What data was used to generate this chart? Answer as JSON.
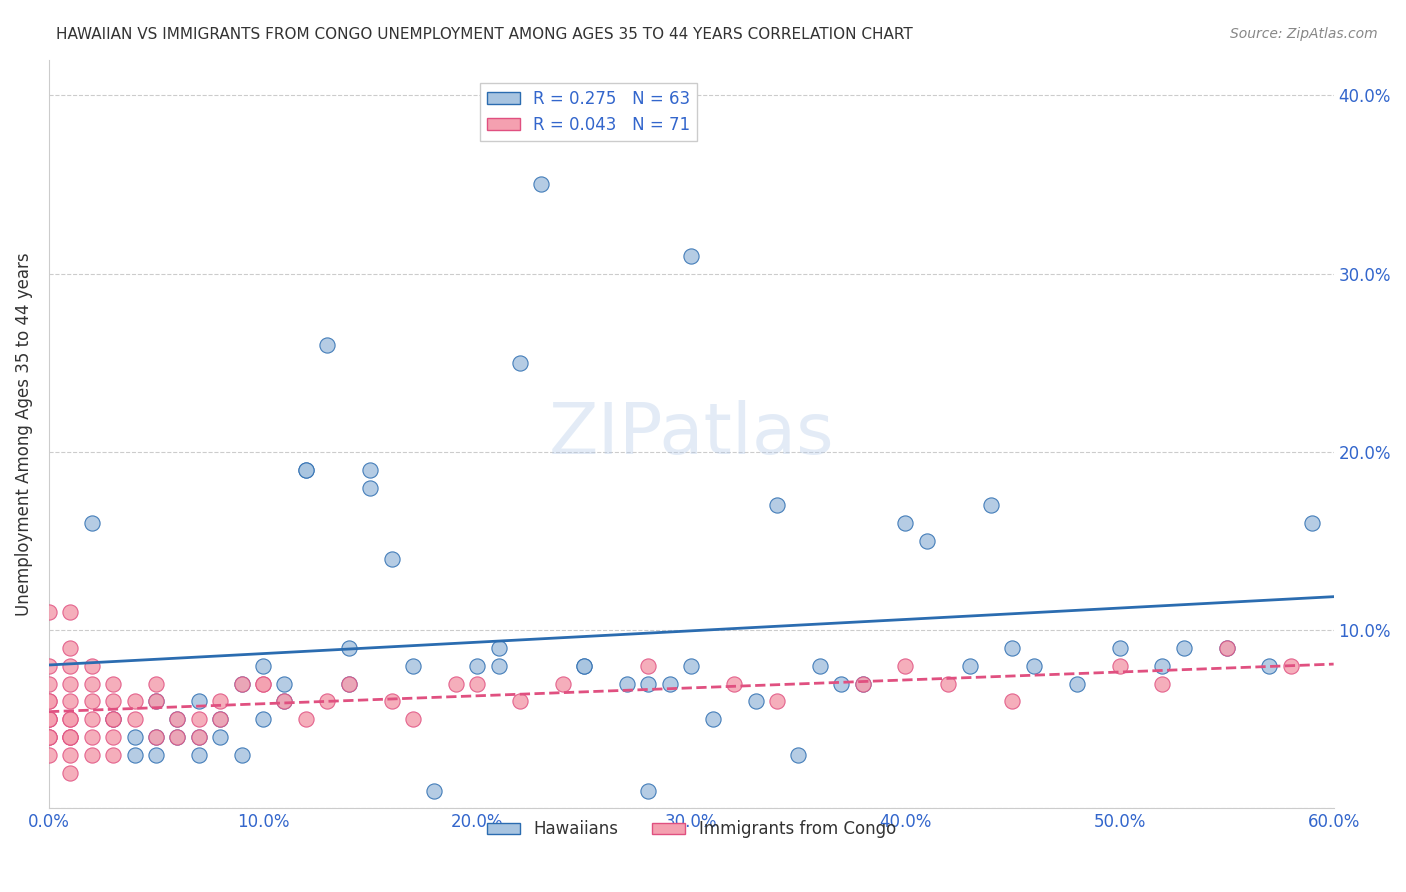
{
  "title": "HAWAIIAN VS IMMIGRANTS FROM CONGO UNEMPLOYMENT AMONG AGES 35 TO 44 YEARS CORRELATION CHART",
  "source": "Source: ZipAtlas.com",
  "ylabel": "Unemployment Among Ages 35 to 44 years",
  "xlim": [
    0.0,
    0.6
  ],
  "ylim": [
    0.0,
    0.42
  ],
  "xticks": [
    0.0,
    0.1,
    0.2,
    0.3,
    0.4,
    0.5,
    0.6
  ],
  "yticks": [
    0.0,
    0.1,
    0.2,
    0.3,
    0.4
  ],
  "ytick_labels": [
    "",
    "10.0%",
    "20.0%",
    "30.0%",
    "40.0%"
  ],
  "xtick_labels": [
    "0.0%",
    "10.0%",
    "20.0%",
    "30.0%",
    "40.0%",
    "50.0%",
    "60.0%"
  ],
  "hawaiians_R": 0.275,
  "hawaiians_N": 63,
  "congo_R": 0.043,
  "congo_N": 71,
  "hawaiians_color": "#a8c4e0",
  "hawaiians_line_color": "#2b6cb0",
  "congo_color": "#f4a0b0",
  "congo_line_color": "#e05080",
  "watermark": "ZIPatlas",
  "hawaiians_x": [
    0.02,
    0.03,
    0.04,
    0.04,
    0.05,
    0.05,
    0.05,
    0.06,
    0.06,
    0.07,
    0.07,
    0.07,
    0.08,
    0.08,
    0.09,
    0.09,
    0.1,
    0.1,
    0.11,
    0.11,
    0.12,
    0.12,
    0.13,
    0.14,
    0.14,
    0.15,
    0.15,
    0.16,
    0.17,
    0.18,
    0.2,
    0.21,
    0.21,
    0.22,
    0.23,
    0.25,
    0.25,
    0.27,
    0.28,
    0.28,
    0.29,
    0.3,
    0.3,
    0.31,
    0.33,
    0.34,
    0.35,
    0.36,
    0.37,
    0.38,
    0.4,
    0.41,
    0.43,
    0.44,
    0.45,
    0.46,
    0.48,
    0.5,
    0.52,
    0.53,
    0.55,
    0.57,
    0.59
  ],
  "hawaiians_y": [
    0.16,
    0.05,
    0.04,
    0.03,
    0.06,
    0.04,
    0.03,
    0.05,
    0.04,
    0.04,
    0.03,
    0.06,
    0.05,
    0.04,
    0.07,
    0.03,
    0.08,
    0.05,
    0.07,
    0.06,
    0.19,
    0.19,
    0.26,
    0.09,
    0.07,
    0.19,
    0.18,
    0.14,
    0.08,
    0.01,
    0.08,
    0.09,
    0.08,
    0.25,
    0.35,
    0.08,
    0.08,
    0.07,
    0.07,
    0.01,
    0.07,
    0.08,
    0.31,
    0.05,
    0.06,
    0.17,
    0.03,
    0.08,
    0.07,
    0.07,
    0.16,
    0.15,
    0.08,
    0.17,
    0.09,
    0.08,
    0.07,
    0.09,
    0.08,
    0.09,
    0.09,
    0.08,
    0.16
  ],
  "congo_x": [
    0.0,
    0.0,
    0.0,
    0.0,
    0.0,
    0.0,
    0.0,
    0.0,
    0.0,
    0.0,
    0.0,
    0.0,
    0.01,
    0.01,
    0.01,
    0.01,
    0.01,
    0.01,
    0.01,
    0.01,
    0.01,
    0.01,
    0.01,
    0.01,
    0.02,
    0.02,
    0.02,
    0.02,
    0.02,
    0.02,
    0.03,
    0.03,
    0.03,
    0.03,
    0.03,
    0.03,
    0.04,
    0.04,
    0.05,
    0.05,
    0.05,
    0.06,
    0.06,
    0.07,
    0.07,
    0.08,
    0.08,
    0.09,
    0.1,
    0.1,
    0.11,
    0.12,
    0.13,
    0.14,
    0.16,
    0.17,
    0.19,
    0.2,
    0.22,
    0.24,
    0.28,
    0.32,
    0.34,
    0.38,
    0.4,
    0.42,
    0.45,
    0.5,
    0.52,
    0.55,
    0.58
  ],
  "congo_y": [
    0.11,
    0.08,
    0.07,
    0.06,
    0.06,
    0.05,
    0.05,
    0.05,
    0.04,
    0.04,
    0.04,
    0.03,
    0.11,
    0.09,
    0.08,
    0.07,
    0.06,
    0.05,
    0.05,
    0.04,
    0.04,
    0.04,
    0.03,
    0.02,
    0.08,
    0.07,
    0.06,
    0.05,
    0.04,
    0.03,
    0.07,
    0.06,
    0.05,
    0.05,
    0.04,
    0.03,
    0.06,
    0.05,
    0.07,
    0.06,
    0.04,
    0.05,
    0.04,
    0.05,
    0.04,
    0.06,
    0.05,
    0.07,
    0.07,
    0.07,
    0.06,
    0.05,
    0.06,
    0.07,
    0.06,
    0.05,
    0.07,
    0.07,
    0.06,
    0.07,
    0.08,
    0.07,
    0.06,
    0.07,
    0.08,
    0.07,
    0.06,
    0.08,
    0.07,
    0.09,
    0.08
  ]
}
